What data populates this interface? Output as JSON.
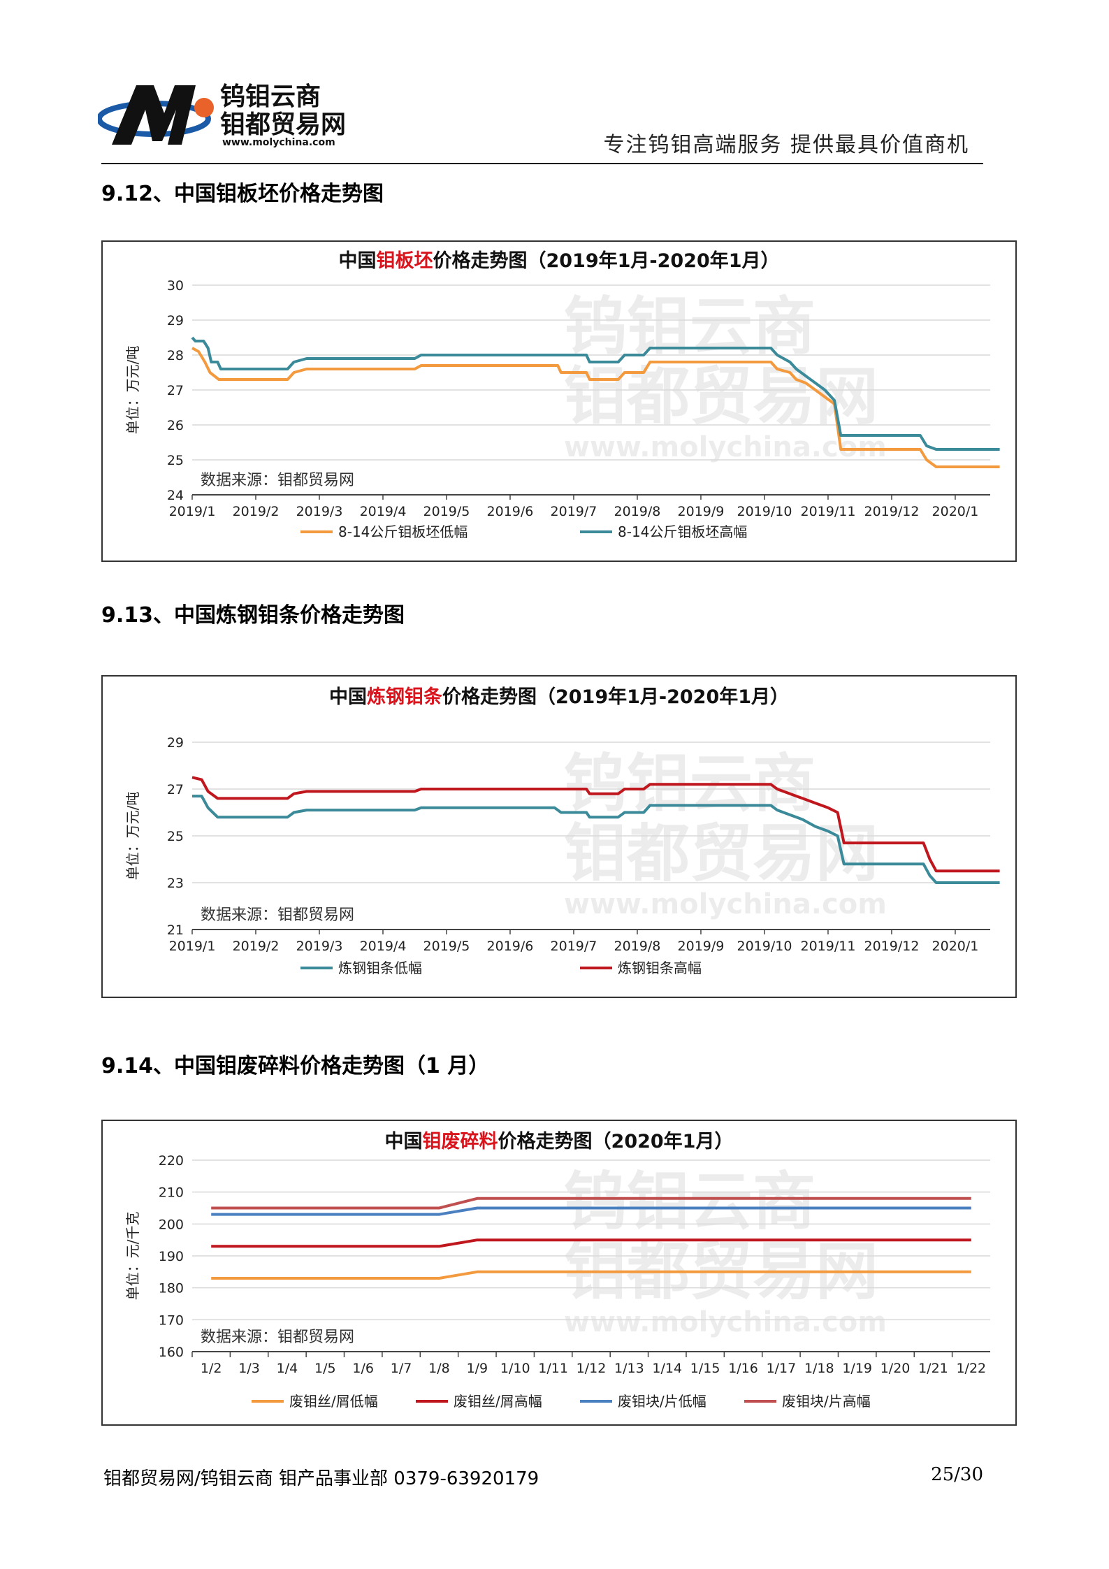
{
  "header": {
    "logo_line1": "钨钼云商",
    "logo_line2": "钼都贸易网",
    "logo_url": "www.molychina.com",
    "slogan": "专注钨钼高端服务   提供最具价值商机",
    "colors": {
      "brand_blue": "#1a5aa6",
      "brand_dark": "#111111",
      "brand_orange": "#e8622a"
    }
  },
  "sections": [
    {
      "title": "9.12、中国钼板坯价格走势图"
    },
    {
      "title": "9.13、中国炼钢钼条价格走势图"
    },
    {
      "title": "9.14、中国钼废碎料价格走势图（1 月）"
    }
  ],
  "watermark": {
    "line1": "钨钼云商",
    "line2": "钼都贸易网",
    "url": "www.molychina.com"
  },
  "chart_data": [
    {
      "type": "line",
      "title_prefix": "中国",
      "title_highlight": "钼板坯",
      "title_suffix": "价格走势图（2019年1月-2020年1月）",
      "ylabel": "单位：万元/吨",
      "source_note": "数据来源：钼都贸易网",
      "x_labels": [
        "2019/1",
        "2019/2",
        "2019/3",
        "2019/4",
        "2019/5",
        "2019/6",
        "2019/7",
        "2019/8",
        "2019/9",
        "2019/10",
        "2019/11",
        "2019/12",
        "2020/1"
      ],
      "ylim": [
        24,
        30
      ],
      "yticks": [
        24,
        25,
        26,
        27,
        28,
        29,
        30
      ],
      "grid": true,
      "legend_position": "bottom",
      "series": [
        {
          "name": "8-14公斤钼板坯低幅",
          "color": "#f39a3e",
          "points": [
            [
              0,
              28.2
            ],
            [
              0.1,
              28.1
            ],
            [
              0.2,
              27.8
            ],
            [
              0.28,
              27.5
            ],
            [
              0.42,
              27.3
            ],
            [
              1.5,
              27.3
            ],
            [
              1.6,
              27.5
            ],
            [
              1.8,
              27.6
            ],
            [
              3.5,
              27.6
            ],
            [
              3.6,
              27.7
            ],
            [
              5.75,
              27.7
            ],
            [
              5.8,
              27.5
            ],
            [
              6.2,
              27.5
            ],
            [
              6.25,
              27.3
            ],
            [
              6.7,
              27.3
            ],
            [
              6.8,
              27.5
            ],
            [
              7.1,
              27.5
            ],
            [
              7.2,
              27.8
            ],
            [
              9.1,
              27.8
            ],
            [
              9.2,
              27.6
            ],
            [
              9.4,
              27.5
            ],
            [
              9.5,
              27.3
            ],
            [
              9.65,
              27.2
            ],
            [
              9.8,
              27.0
            ],
            [
              9.95,
              26.8
            ],
            [
              10.1,
              26.6
            ],
            [
              10.2,
              25.3
            ],
            [
              11.0,
              25.3
            ],
            [
              11.45,
              25.3
            ],
            [
              11.55,
              25.0
            ],
            [
              11.7,
              24.8
            ],
            [
              12.7,
              24.8
            ]
          ]
        },
        {
          "name": "8-14公斤钼板坯高幅",
          "color": "#3a8a99",
          "points": [
            [
              0,
              28.5
            ],
            [
              0.05,
              28.4
            ],
            [
              0.18,
              28.4
            ],
            [
              0.25,
              28.2
            ],
            [
              0.3,
              27.8
            ],
            [
              0.4,
              27.8
            ],
            [
              0.45,
              27.6
            ],
            [
              1.5,
              27.6
            ],
            [
              1.6,
              27.8
            ],
            [
              1.8,
              27.9
            ],
            [
              3.5,
              27.9
            ],
            [
              3.6,
              28.0
            ],
            [
              6.2,
              28.0
            ],
            [
              6.25,
              27.8
            ],
            [
              6.7,
              27.8
            ],
            [
              6.8,
              28.0
            ],
            [
              7.1,
              28.0
            ],
            [
              7.2,
              28.2
            ],
            [
              9.1,
              28.2
            ],
            [
              9.2,
              28.0
            ],
            [
              9.4,
              27.8
            ],
            [
              9.5,
              27.6
            ],
            [
              9.65,
              27.4
            ],
            [
              9.8,
              27.2
            ],
            [
              9.95,
              27.0
            ],
            [
              10.1,
              26.7
            ],
            [
              10.2,
              25.7
            ],
            [
              11.0,
              25.7
            ],
            [
              11.45,
              25.7
            ],
            [
              11.55,
              25.4
            ],
            [
              11.7,
              25.3
            ],
            [
              12.7,
              25.3
            ]
          ]
        }
      ]
    },
    {
      "type": "line",
      "title_prefix": "中国",
      "title_highlight": "炼钢钼条",
      "title_suffix": "价格走势图（2019年1月-2020年1月）",
      "ylabel": "单位：万元/吨",
      "source_note": "数据来源：钼都贸易网",
      "x_labels": [
        "2019/1",
        "2019/2",
        "2019/3",
        "2019/4",
        "2019/5",
        "2019/6",
        "2019/7",
        "2019/8",
        "2019/9",
        "2019/10",
        "2019/11",
        "2019/12",
        "2020/1"
      ],
      "ylim": [
        21,
        29
      ],
      "yticks": [
        21,
        23,
        25,
        27,
        29
      ],
      "grid": true,
      "legend_position": "bottom",
      "series": [
        {
          "name": "炼钢钼条低幅",
          "color": "#3a8a99",
          "points": [
            [
              0,
              26.7
            ],
            [
              0.15,
              26.7
            ],
            [
              0.25,
              26.2
            ],
            [
              0.4,
              25.8
            ],
            [
              1.5,
              25.8
            ],
            [
              1.6,
              26.0
            ],
            [
              1.8,
              26.1
            ],
            [
              3.5,
              26.1
            ],
            [
              3.6,
              26.2
            ],
            [
              5.7,
              26.2
            ],
            [
              5.8,
              26.0
            ],
            [
              6.2,
              26.0
            ],
            [
              6.25,
              25.8
            ],
            [
              6.7,
              25.8
            ],
            [
              6.8,
              26.0
            ],
            [
              7.1,
              26.0
            ],
            [
              7.2,
              26.3
            ],
            [
              9.1,
              26.3
            ],
            [
              9.2,
              26.1
            ],
            [
              9.4,
              25.9
            ],
            [
              9.6,
              25.7
            ],
            [
              9.8,
              25.4
            ],
            [
              10.0,
              25.2
            ],
            [
              10.15,
              25.0
            ],
            [
              10.25,
              23.8
            ],
            [
              11.0,
              23.8
            ],
            [
              11.5,
              23.8
            ],
            [
              11.6,
              23.3
            ],
            [
              11.7,
              23.0
            ],
            [
              12.7,
              23.0
            ]
          ]
        },
        {
          "name": "炼钢钼条高幅",
          "color": "#c0161d",
          "points": [
            [
              0,
              27.5
            ],
            [
              0.15,
              27.4
            ],
            [
              0.25,
              26.9
            ],
            [
              0.4,
              26.6
            ],
            [
              1.5,
              26.6
            ],
            [
              1.6,
              26.8
            ],
            [
              1.8,
              26.9
            ],
            [
              3.5,
              26.9
            ],
            [
              3.6,
              27.0
            ],
            [
              6.2,
              27.0
            ],
            [
              6.25,
              26.8
            ],
            [
              6.7,
              26.8
            ],
            [
              6.8,
              27.0
            ],
            [
              7.1,
              27.0
            ],
            [
              7.2,
              27.2
            ],
            [
              9.1,
              27.2
            ],
            [
              9.2,
              27.0
            ],
            [
              9.4,
              26.8
            ],
            [
              9.6,
              26.6
            ],
            [
              9.8,
              26.4
            ],
            [
              10.0,
              26.2
            ],
            [
              10.15,
              26.0
            ],
            [
              10.25,
              24.7
            ],
            [
              11.0,
              24.7
            ],
            [
              11.5,
              24.7
            ],
            [
              11.6,
              24.0
            ],
            [
              11.7,
              23.5
            ],
            [
              12.7,
              23.5
            ]
          ]
        }
      ]
    },
    {
      "type": "line",
      "title_prefix": "中国",
      "title_highlight": "钼废碎料",
      "title_suffix": "价格走势图（2020年1月）",
      "ylabel": "单位：元/千克",
      "source_note": "数据来源：钼都贸易网",
      "x_labels": [
        "1/2",
        "1/3",
        "1/4",
        "1/5",
        "1/6",
        "1/7",
        "1/8",
        "1/9",
        "1/10",
        "1/11",
        "1/12",
        "1/13",
        "1/14",
        "1/15",
        "1/16",
        "1/17",
        "1/18",
        "1/19",
        "1/20",
        "1/21",
        "1/22"
      ],
      "ylim": [
        160,
        220
      ],
      "yticks": [
        160,
        170,
        180,
        190,
        200,
        210,
        220
      ],
      "grid": true,
      "legend_position": "bottom",
      "series": [
        {
          "name": "废钼丝/屑低幅",
          "color": "#f39a3e",
          "points": [
            [
              0,
              183
            ],
            [
              6,
              183
            ],
            [
              7,
              185
            ],
            [
              20,
              185
            ]
          ]
        },
        {
          "name": "废钼丝/屑高幅",
          "color": "#c0161d",
          "points": [
            [
              0,
              193
            ],
            [
              6,
              193
            ],
            [
              7,
              195
            ],
            [
              20,
              195
            ]
          ]
        },
        {
          "name": "废钼块/片低幅",
          "color": "#4a7fc0",
          "points": [
            [
              0,
              203
            ],
            [
              6,
              203
            ],
            [
              7,
              205
            ],
            [
              20,
              205
            ]
          ]
        },
        {
          "name": "废钼块/片高幅",
          "color": "#c05050",
          "points": [
            [
              0,
              205
            ],
            [
              6,
              205
            ],
            [
              7,
              208
            ],
            [
              20,
              208
            ]
          ]
        }
      ]
    }
  ],
  "footer": {
    "left": "钼都贸易网/钨钼云商 钼产品事业部 0379-63920179",
    "page": "25/30"
  }
}
